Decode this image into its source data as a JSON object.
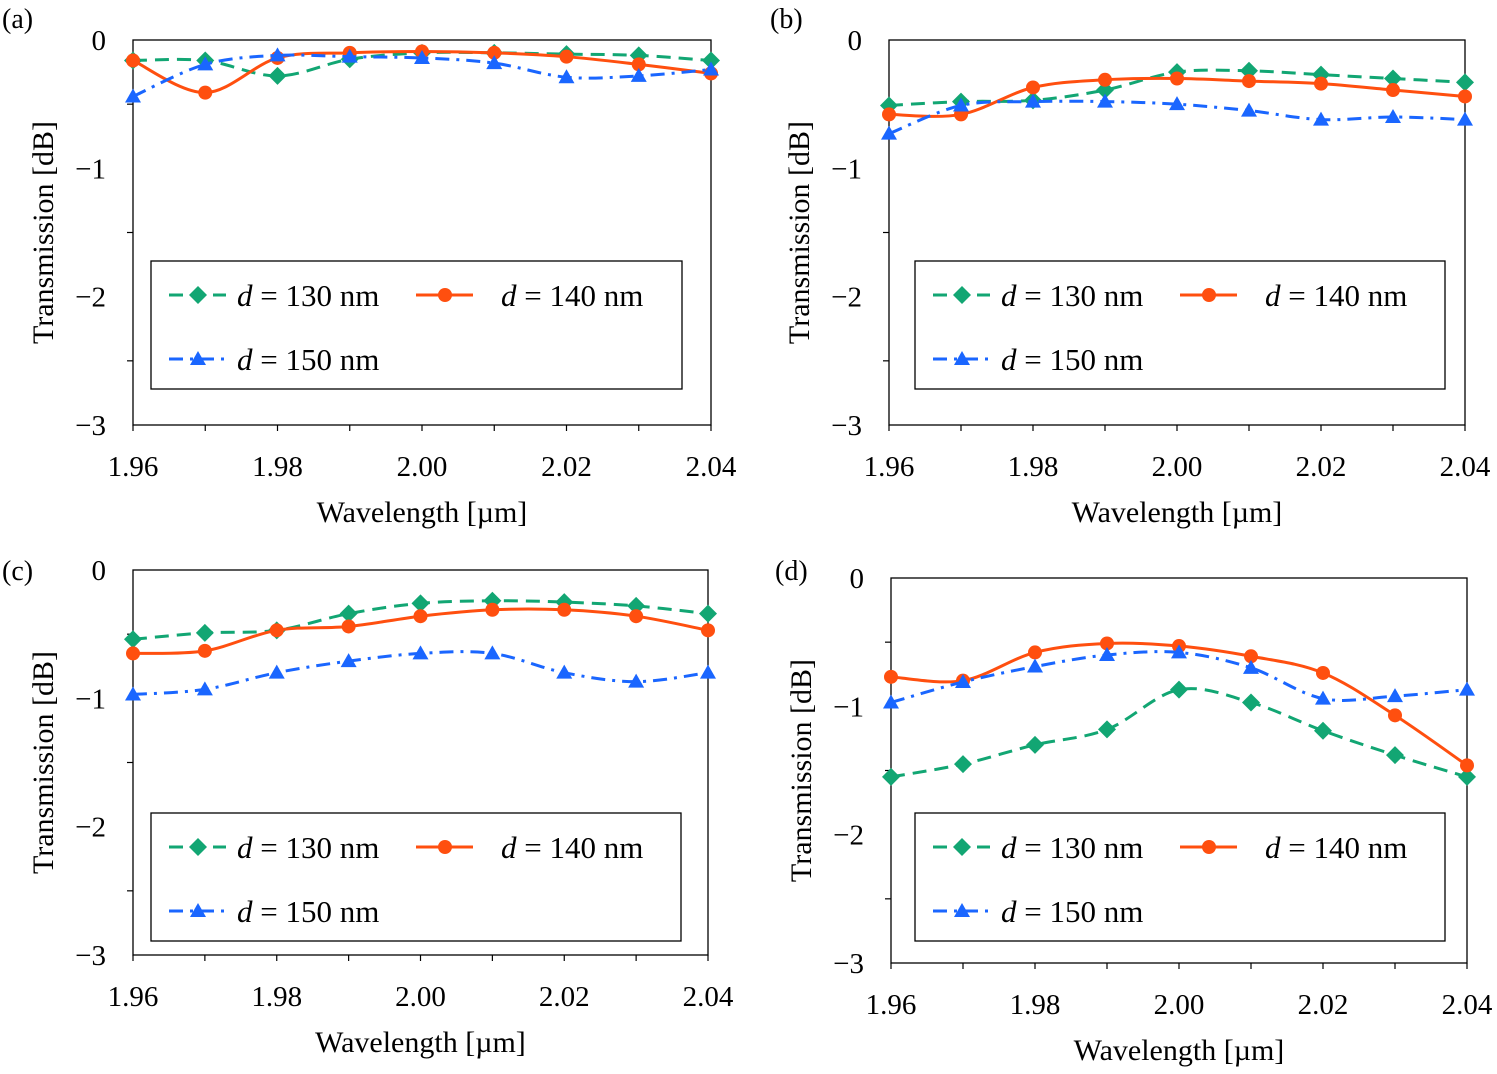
{
  "colors": {
    "d130": "#12A673",
    "d140": "#FF4F0F",
    "d150": "#1A66FF"
  },
  "chart_data": [
    {
      "panel_label": "(a)",
      "type": "line",
      "xlabel": "Wavelength [µm]",
      "ylabel": "Transmission [dB]",
      "xlim": [
        1.96,
        2.04
      ],
      "ylim": [
        -3,
        0
      ],
      "xticks": [
        "1.96",
        "1.98",
        "2.00",
        "2.02",
        "2.04"
      ],
      "yticks": [
        "0",
        "−1",
        "−2",
        "−3"
      ],
      "grid": false,
      "legend": "lower-center boxed",
      "x": [
        1.96,
        1.97,
        1.98,
        1.99,
        2.0,
        2.01,
        2.02,
        2.03,
        2.04
      ],
      "series": [
        {
          "name": "d = 130 nm",
          "values": [
            -0.16,
            -0.16,
            -0.28,
            -0.15,
            -0.1,
            -0.1,
            -0.11,
            -0.12,
            -0.16
          ]
        },
        {
          "name": "d = 140 nm",
          "values": [
            -0.16,
            -0.41,
            -0.14,
            -0.1,
            -0.09,
            -0.1,
            -0.13,
            -0.19,
            -0.26
          ]
        },
        {
          "name": "d = 150 nm",
          "values": [
            -0.44,
            -0.19,
            -0.12,
            -0.13,
            -0.14,
            -0.18,
            -0.29,
            -0.28,
            -0.23
          ]
        }
      ]
    },
    {
      "panel_label": "(b)",
      "type": "line",
      "xlabel": "Wavelength [µm]",
      "ylabel": "Transmission [dB]",
      "xlim": [
        1.96,
        2.04
      ],
      "ylim": [
        -3,
        0
      ],
      "xticks": [
        "1.96",
        "1.98",
        "2.00",
        "2.02",
        "2.04"
      ],
      "yticks": [
        "0",
        "−1",
        "−2",
        "−3"
      ],
      "grid": false,
      "legend": "lower-center boxed",
      "x": [
        1.96,
        1.97,
        1.98,
        1.99,
        2.0,
        2.01,
        2.02,
        2.03,
        2.04
      ],
      "series": [
        {
          "name": "d = 130 nm",
          "values": [
            -0.51,
            -0.48,
            -0.47,
            -0.39,
            -0.25,
            -0.24,
            -0.27,
            -0.3,
            -0.33
          ]
        },
        {
          "name": "d = 140 nm",
          "values": [
            -0.58,
            -0.58,
            -0.37,
            -0.31,
            -0.3,
            -0.32,
            -0.34,
            -0.39,
            -0.44
          ]
        },
        {
          "name": "d = 150 nm",
          "values": [
            -0.73,
            -0.51,
            -0.48,
            -0.48,
            -0.5,
            -0.55,
            -0.62,
            -0.6,
            -0.62
          ]
        }
      ]
    },
    {
      "panel_label": "(c)",
      "type": "line",
      "xlabel": "Wavelength [µm]",
      "ylabel": "Transmission [dB]",
      "xlim": [
        1.96,
        2.04
      ],
      "ylim": [
        -3,
        0
      ],
      "xticks": [
        "1.96",
        "1.98",
        "2.00",
        "2.02",
        "2.04"
      ],
      "yticks": [
        "0",
        "−1",
        "−2",
        "−3"
      ],
      "grid": false,
      "legend": "lower-center boxed",
      "x": [
        1.96,
        1.97,
        1.98,
        1.99,
        2.0,
        2.01,
        2.02,
        2.03,
        2.04
      ],
      "series": [
        {
          "name": "d = 130 nm",
          "values": [
            -0.54,
            -0.49,
            -0.47,
            -0.34,
            -0.26,
            -0.24,
            -0.25,
            -0.28,
            -0.34
          ]
        },
        {
          "name": "d = 140 nm",
          "values": [
            -0.65,
            -0.63,
            -0.47,
            -0.44,
            -0.36,
            -0.31,
            -0.31,
            -0.36,
            -0.47
          ]
        },
        {
          "name": "d = 150 nm",
          "values": [
            -0.97,
            -0.93,
            -0.8,
            -0.71,
            -0.65,
            -0.65,
            -0.8,
            -0.87,
            -0.8
          ]
        }
      ]
    },
    {
      "panel_label": "(d)",
      "type": "line",
      "xlabel": "Wavelength [µm]",
      "ylabel": "Transmission [dB]",
      "xlim": [
        1.96,
        2.04
      ],
      "ylim": [
        -3,
        0
      ],
      "xticks": [
        "1.96",
        "1.98",
        "2.00",
        "2.02",
        "2.04"
      ],
      "yticks": [
        "0",
        "−1",
        "−2",
        "−3"
      ],
      "grid": false,
      "legend": "lower-center boxed",
      "x": [
        1.96,
        1.97,
        1.98,
        1.99,
        2.0,
        2.01,
        2.02,
        2.03,
        2.04
      ],
      "series": [
        {
          "name": "d = 130 nm",
          "values": [
            -1.55,
            -1.45,
            -1.3,
            -1.18,
            -0.87,
            -0.97,
            -1.19,
            -1.38,
            -1.55
          ]
        },
        {
          "name": "d = 140 nm",
          "values": [
            -0.77,
            -0.8,
            -0.58,
            -0.51,
            -0.53,
            -0.61,
            -0.74,
            -1.07,
            -1.46
          ]
        },
        {
          "name": "d = 150 nm",
          "values": [
            -0.97,
            -0.81,
            -0.69,
            -0.6,
            -0.58,
            -0.7,
            -0.94,
            -0.92,
            -0.87
          ]
        }
      ]
    }
  ]
}
